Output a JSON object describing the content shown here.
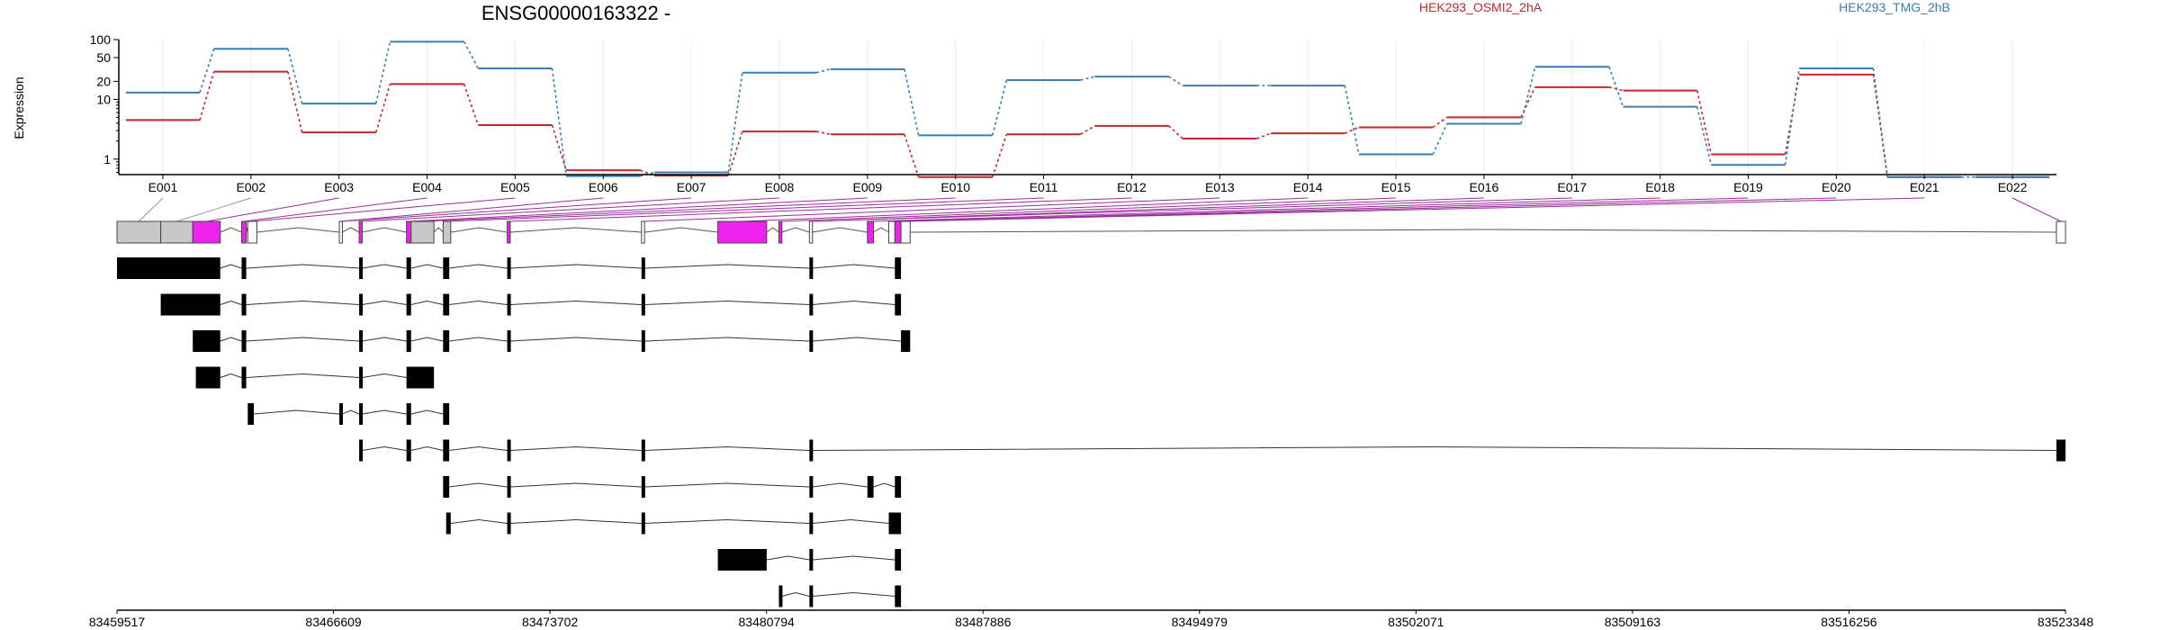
{
  "chart_data": {
    "type": "line",
    "title": "ENSG00000163322 -",
    "ylabel": "Expression",
    "ylim": [
      0.55,
      100
    ],
    "y_scale": "log",
    "y_ticks": [
      1,
      10,
      20,
      50,
      100
    ],
    "grid": "x",
    "legend_placement": "top",
    "categories": [
      "E001",
      "E002",
      "E003",
      "E004",
      "E005",
      "E006",
      "E007",
      "E008",
      "E009",
      "E010",
      "E011",
      "E012",
      "E013",
      "E014",
      "E015",
      "E016",
      "E017",
      "E018",
      "E019",
      "E020",
      "E021",
      "E022"
    ],
    "series": [
      {
        "name": "HEK293_OSMI2_2hA",
        "color": "#c0282d",
        "values": [
          4.5,
          29,
          2.8,
          18,
          3.7,
          0.65,
          0.53,
          2.9,
          2.6,
          0.5,
          2.6,
          3.6,
          2.2,
          2.7,
          3.4,
          5.0,
          16,
          14,
          1.2,
          26,
          0.5,
          0.5
        ]
      },
      {
        "name": "HEK293_TMG_2hB",
        "color": "#3b7cb4",
        "values": [
          13,
          70,
          8.5,
          92,
          33,
          0.52,
          0.6,
          28,
          32,
          2.5,
          21,
          24,
          17,
          17,
          1.2,
          3.9,
          35,
          7.5,
          0.8,
          33,
          0.5,
          0.5
        ]
      }
    ],
    "genomic_ticks": [
      "83459517",
      "83466609",
      "83473702",
      "83480794",
      "83487886",
      "83494979",
      "83502071",
      "83509163",
      "83516256",
      "83523348"
    ],
    "genomic_range": [
      83459517,
      83523348
    ],
    "exon_colors": {
      "default": "#c8c8c8",
      "highlight": "#ee22ee",
      "transcript": "#000000",
      "link": "#9b2f9b"
    },
    "transcripts": [
      [
        [
          83459517,
          83462900
        ],
        [
          83463600,
          83463750
        ],
        [
          83467450,
          83467550
        ],
        [
          83469000,
          83469150
        ],
        [
          83470200,
          83470400
        ],
        [
          83472300,
          83472400
        ],
        [
          83476700,
          83476800
        ],
        [
          83482200,
          83482300
        ],
        [
          83485000,
          83485200
        ]
      ],
      [
        [
          83460950,
          83462900
        ],
        [
          83463600,
          83463750
        ],
        [
          83467450,
          83467550
        ],
        [
          83469000,
          83469150
        ],
        [
          83470200,
          83470400
        ],
        [
          83472300,
          83472400
        ],
        [
          83476700,
          83476800
        ],
        [
          83482200,
          83482300
        ],
        [
          83485000,
          83485200
        ]
      ],
      [
        [
          83462000,
          83462900
        ],
        [
          83463600,
          83463750
        ],
        [
          83467450,
          83467550
        ],
        [
          83469000,
          83469150
        ],
        [
          83470200,
          83470400
        ],
        [
          83472300,
          83472400
        ],
        [
          83476700,
          83476800
        ],
        [
          83482200,
          83482300
        ],
        [
          83485200,
          83485500
        ]
      ],
      [
        [
          83462100,
          83462900
        ],
        [
          83463600,
          83463750
        ],
        [
          83467450,
          83467550
        ],
        [
          83469000,
          83469900
        ]
      ],
      [
        [
          83463800,
          83464000
        ],
        [
          83466800,
          83466900
        ],
        [
          83467450,
          83467550
        ],
        [
          83469000,
          83469150
        ],
        [
          83470200,
          83470400
        ]
      ],
      [
        [
          83467450,
          83467550
        ],
        [
          83469000,
          83469150
        ],
        [
          83470200,
          83470400
        ],
        [
          83472300,
          83472400
        ],
        [
          83476700,
          83476800
        ],
        [
          83482200,
          83482300
        ],
        [
          83523050,
          83523348
        ]
      ],
      [
        [
          83470200,
          83470400
        ],
        [
          83472300,
          83472400
        ],
        [
          83476700,
          83476800
        ],
        [
          83482200,
          83482300
        ],
        [
          83484100,
          83484300
        ],
        [
          83485000,
          83485200
        ]
      ],
      [
        [
          83470300,
          83470450
        ],
        [
          83472300,
          83472400
        ],
        [
          83476700,
          83476800
        ],
        [
          83482200,
          83482300
        ],
        [
          83484800,
          83485200
        ]
      ],
      [
        [
          83479200,
          83480800
        ],
        [
          83482200,
          83482300
        ],
        [
          83485000,
          83485200
        ]
      ],
      [
        [
          83481200,
          83481300
        ],
        [
          83482200,
          83482300
        ],
        [
          83485000,
          83485200
        ]
      ]
    ],
    "gene_exons": [
      {
        "range": [
          83459517,
          83460950
        ],
        "color": "default"
      },
      {
        "range": [
          83460950,
          83462000
        ],
        "color": "default"
      },
      {
        "range": [
          83462000,
          83462900
        ],
        "color": "highlight"
      },
      {
        "range": [
          83463600,
          83463750
        ],
        "color": "highlight"
      },
      {
        "range": [
          83463800,
          83464100
        ],
        "color": "white"
      },
      {
        "range": [
          83466800,
          83466900
        ],
        "color": "white"
      },
      {
        "range": [
          83467450,
          83467550
        ],
        "color": "highlight"
      },
      {
        "range": [
          83469000,
          83469150
        ],
        "color": "highlight"
      },
      {
        "range": [
          83469150,
          83469900
        ],
        "color": "default"
      },
      {
        "range": [
          83470200,
          83470450
        ],
        "color": "default"
      },
      {
        "range": [
          83472300,
          83472400
        ],
        "color": "highlight"
      },
      {
        "range": [
          83476700,
          83476800
        ],
        "color": "white"
      },
      {
        "range": [
          83479200,
          83480800
        ],
        "color": "highlight"
      },
      {
        "range": [
          83481200,
          83481300
        ],
        "color": "highlight"
      },
      {
        "range": [
          83482200,
          83482300
        ],
        "color": "white"
      },
      {
        "range": [
          83484100,
          83484300
        ],
        "color": "highlight"
      },
      {
        "range": [
          83484800,
          83485000
        ],
        "color": "white"
      },
      {
        "range": [
          83485000,
          83485200
        ],
        "color": "highlight"
      },
      {
        "range": [
          83485200,
          83485500
        ],
        "color": "white"
      },
      {
        "range": [
          83523050,
          83523348
        ],
        "color": "white"
      }
    ]
  }
}
